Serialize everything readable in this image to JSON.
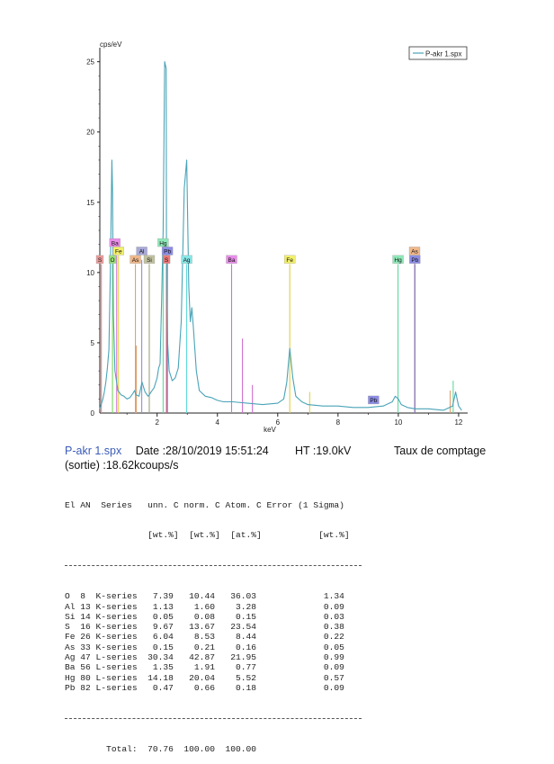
{
  "chart_data": {
    "type": "line",
    "series": [
      {
        "name": "P-akr 1.spx",
        "x": [
          0.1,
          0.2,
          0.25,
          0.3,
          0.35,
          0.4,
          0.45,
          0.5,
          0.52,
          0.55,
          0.6,
          0.7,
          0.8,
          0.9,
          1.0,
          1.1,
          1.2,
          1.25,
          1.3,
          1.4,
          1.5,
          1.6,
          1.7,
          1.74,
          1.8,
          1.9,
          2.0,
          2.05,
          2.1,
          2.15,
          2.2,
          2.25,
          2.3,
          2.31,
          2.35,
          2.4,
          2.5,
          2.6,
          2.7,
          2.8,
          2.9,
          2.98,
          3.05,
          3.1,
          3.15,
          3.2,
          3.3,
          3.4,
          3.6,
          3.8,
          4.0,
          4.2,
          4.5,
          5.0,
          5.5,
          6.0,
          6.2,
          6.3,
          6.4,
          6.5,
          6.6,
          6.8,
          7.0,
          7.5,
          8.0,
          8.5,
          9.0,
          9.5,
          9.8,
          9.9,
          10.0,
          10.1,
          10.3,
          10.55,
          11.0,
          11.5,
          11.8,
          11.9,
          12.0,
          12.1
        ],
        "y": [
          0.3,
          1.0,
          1.5,
          2.2,
          3.2,
          4.5,
          10.0,
          18.0,
          16.0,
          7.0,
          3.0,
          1.6,
          1.3,
          1.2,
          1.0,
          1.1,
          1.4,
          1.6,
          1.3,
          1.2,
          2.2,
          1.5,
          1.2,
          1.3,
          1.5,
          1.8,
          2.5,
          3.2,
          3.5,
          8.0,
          13.0,
          25.0,
          24.5,
          12.0,
          5.0,
          3.0,
          2.3,
          2.5,
          3.2,
          6.5,
          16.0,
          18.0,
          9.0,
          6.5,
          7.5,
          6.2,
          3.0,
          1.6,
          1.2,
          1.1,
          0.9,
          0.8,
          0.8,
          0.7,
          0.6,
          0.7,
          1.0,
          2.2,
          4.6,
          2.5,
          1.2,
          0.8,
          0.6,
          0.5,
          0.5,
          0.4,
          0.4,
          0.5,
          0.8,
          1.2,
          1.0,
          0.6,
          0.4,
          0.3,
          0.3,
          0.2,
          0.5,
          1.5,
          0.5,
          0.2
        ]
      }
    ],
    "xlabel": "keV",
    "ylabel": "cps/eV",
    "xlim": [
      0.1,
      12.3
    ],
    "ylim": [
      0,
      26
    ],
    "xticks": [
      "2",
      "4",
      "6",
      "8",
      "10",
      "12"
    ],
    "yticks": [
      "5",
      "10",
      "15",
      "20",
      "25"
    ],
    "legend_position": "top-right",
    "element_markers": [
      {
        "label": "S",
        "x": 0.1,
        "y": 10.9,
        "color": "#e89a9a"
      },
      {
        "label": "O",
        "x": 0.52,
        "y": 10.9,
        "color": "#9ae07a"
      },
      {
        "label": "Ba",
        "x": 0.6,
        "y": 12.1,
        "color": "#e98ce9"
      },
      {
        "label": "Fe",
        "x": 0.72,
        "y": 11.5,
        "color": "#f2ef6c"
      },
      {
        "label": "As",
        "x": 1.28,
        "y": 10.9,
        "color": "#f0b88a"
      },
      {
        "label": "Al",
        "x": 1.49,
        "y": 11.5,
        "color": "#a9a9d8"
      },
      {
        "label": "Si",
        "x": 1.74,
        "y": 10.9,
        "color": "#c0c0a0"
      },
      {
        "label": "Hg",
        "x": 2.2,
        "y": 12.1,
        "color": "#8ee8b8"
      },
      {
        "label": "Pb",
        "x": 2.34,
        "y": 11.5,
        "color": "#8c8ce6"
      },
      {
        "label": "S",
        "x": 2.31,
        "y": 10.9,
        "color": "#f07878"
      },
      {
        "label": "Ag",
        "x": 2.98,
        "y": 10.9,
        "color": "#88e6e6"
      },
      {
        "label": "Ba",
        "x": 4.47,
        "y": 10.9,
        "color": "#e98ce9"
      },
      {
        "label": "Fe",
        "x": 6.4,
        "y": 10.9,
        "color": "#f2ef6c"
      },
      {
        "label": "Hg",
        "x": 9.99,
        "y": 10.9,
        "color": "#8ee8b8"
      },
      {
        "label": "As",
        "x": 10.54,
        "y": 11.5,
        "color": "#f0b88a"
      },
      {
        "label": "Pb",
        "x": 10.55,
        "y": 10.9,
        "color": "#8c8ce6"
      },
      {
        "label": "Pb",
        "x": 9.18,
        "y": 0.9,
        "color": "#8c8ce6"
      }
    ],
    "element_lines": [
      {
        "x": 0.15,
        "y": 10.6,
        "color": "#e88080"
      },
      {
        "x": 0.52,
        "y": 10.6,
        "color": "#7ad860"
      },
      {
        "x": 0.66,
        "y": 11.2,
        "color": "#d070d0"
      },
      {
        "x": 0.72,
        "y": 11.2,
        "color": "#e0d040"
      },
      {
        "x": 1.28,
        "y": 10.6,
        "color": "#e0a070"
      },
      {
        "x": 1.31,
        "y": 4.8,
        "color": "#e0a070"
      },
      {
        "x": 1.49,
        "y": 10.9,
        "color": "#9090d0"
      },
      {
        "x": 1.74,
        "y": 10.6,
        "color": "#a0a080"
      },
      {
        "x": 2.2,
        "y": 11.8,
        "color": "#60d8a0"
      },
      {
        "x": 2.31,
        "y": 10.6,
        "color": "#e06060"
      },
      {
        "x": 2.34,
        "y": 10.9,
        "color": "#7070d8"
      },
      {
        "x": 2.98,
        "y": 10.6,
        "color": "#60d8d8"
      },
      {
        "x": 4.47,
        "y": 10.6,
        "color": "#d070d0"
      },
      {
        "x": 4.83,
        "y": 5.3,
        "color": "#d070d0"
      },
      {
        "x": 5.16,
        "y": 2.0,
        "color": "#d070d0"
      },
      {
        "x": 6.4,
        "y": 10.6,
        "color": "#e0d040"
      },
      {
        "x": 7.06,
        "y": 1.5,
        "color": "#e0d040"
      },
      {
        "x": 9.99,
        "y": 10.6,
        "color": "#60d8a0"
      },
      {
        "x": 10.54,
        "y": 10.9,
        "color": "#e0a070"
      },
      {
        "x": 10.55,
        "y": 10.6,
        "color": "#7070d8"
      },
      {
        "x": 11.72,
        "y": 1.6,
        "color": "#e0a070"
      },
      {
        "x": 11.82,
        "y": 2.3,
        "color": "#60d8a0"
      }
    ],
    "colors": {
      "spectrum": "#4aa3b8",
      "axis": "#222222"
    }
  },
  "report": {
    "filename": "P-akr 1.spx",
    "date": "Date :28/10/2019 15:51:24",
    "ht": "HT :19.0kV",
    "rate_label": "Taux de comptage",
    "rate_value": "(sortie) :18.62kcoups/s",
    "table_header_1": "El AN  Series   unn. C norm. C Atom. C Error (1 Sigma)",
    "table_header_2": "                [wt.%]  [wt.%]  [at.%]           [wt.%]",
    "rows": [
      "O  8  K-series   7.39   10.44   36.03             1.34",
      "Al 13 K-series   1.13    1.60    3.28             0.09",
      "Si 14 K-series   0.05    0.08    0.15             0.03",
      "S  16 K-series   9.67   13.67   23.54             0.38",
      "Fe 26 K-series   6.04    8.53    8.44             0.22",
      "As 33 K-series   0.15    0.21    0.16             0.05",
      "Ag 47 L-series  30.34   42.87   21.95             0.99",
      "Ba 56 L-series   1.35    1.91    0.77             0.09",
      "Hg 80 L-series  14.18   20.04    5.52             0.57",
      "Pb 82 L-series   0.47    0.66    0.18             0.09"
    ],
    "total": "        Total:  70.76  100.00  100.00"
  }
}
